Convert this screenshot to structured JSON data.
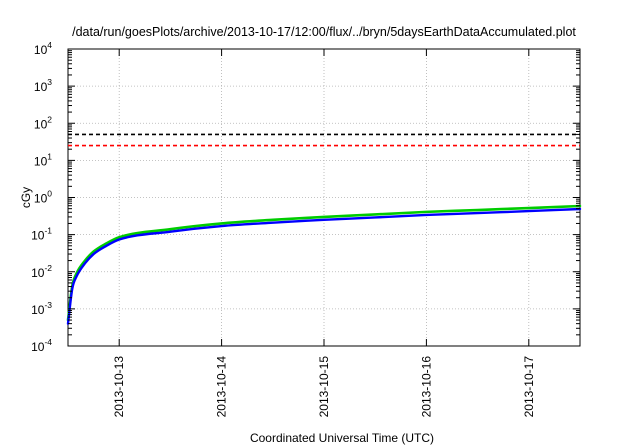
{
  "chart_data": {
    "type": "line",
    "title": "/data/run/goesPlots/archive/2013-10-17/12:00/flux/../bryn/5daysEarthDataAccumulated.plot",
    "xlabel": "Coordinated Universal Time (UTC)",
    "ylabel": "cGy",
    "x_scale": "time",
    "y_scale": "log",
    "xlim": [
      "2013-10-12 12:00",
      "2013-10-17 12:00"
    ],
    "ylim": [
      0.0001,
      10000
    ],
    "grid": true,
    "x_ticks": [
      "2013-10-13",
      "2013-10-14",
      "2013-10-15",
      "2013-10-16",
      "2013-10-17"
    ],
    "y_ticks": [
      {
        "base": "10",
        "exp": "-4",
        "value": 0.0001
      },
      {
        "base": "10",
        "exp": "-3",
        "value": 0.001
      },
      {
        "base": "10",
        "exp": "-2",
        "value": 0.01
      },
      {
        "base": "10",
        "exp": "-1",
        "value": 0.1
      },
      {
        "base": "10",
        "exp": "0",
        "value": 1
      },
      {
        "base": "10",
        "exp": "1",
        "value": 10
      },
      {
        "base": "10",
        "exp": "2",
        "value": 100
      },
      {
        "base": "10",
        "exp": "3",
        "value": 1000
      },
      {
        "base": "10",
        "exp": "4",
        "value": 10000
      }
    ],
    "thresholds": [
      {
        "value": 50,
        "color": "#000000",
        "style": "dashed"
      },
      {
        "value": 25,
        "color": "#ff0000",
        "style": "dashed"
      }
    ],
    "series": [
      {
        "color": "#00cc00",
        "x": [
          "2013-10-12 12:00",
          "2013-10-12 13:00",
          "2013-10-12 14:00",
          "2013-10-12 16:00",
          "2013-10-12 18:00",
          "2013-10-12 21:00",
          "2013-10-13 00:00",
          "2013-10-13 12:00",
          "2013-10-14 00:00",
          "2013-10-14 12:00",
          "2013-10-15 00:00",
          "2013-10-15 12:00",
          "2013-10-16 00:00",
          "2013-10-16 12:00",
          "2013-10-17 00:00",
          "2013-10-17 12:00"
        ],
        "values": [
          0.0005,
          0.0042,
          0.009,
          0.02,
          0.035,
          0.058,
          0.085,
          0.14,
          0.2,
          0.25,
          0.3,
          0.35,
          0.41,
          0.46,
          0.52,
          0.59
        ]
      },
      {
        "color": "#0000ff",
        "x": [
          "2013-10-12 12:00",
          "2013-10-12 13:00",
          "2013-10-12 14:00",
          "2013-10-12 16:00",
          "2013-10-12 18:00",
          "2013-10-12 21:00",
          "2013-10-13 00:00",
          "2013-10-13 12:00",
          "2013-10-14 00:00",
          "2013-10-14 12:00",
          "2013-10-15 00:00",
          "2013-10-15 12:00",
          "2013-10-16 00:00",
          "2013-10-16 12:00",
          "2013-10-17 00:00",
          "2013-10-17 12:00"
        ],
        "values": [
          0.0004,
          0.0035,
          0.0075,
          0.017,
          0.03,
          0.05,
          0.074,
          0.12,
          0.17,
          0.21,
          0.25,
          0.29,
          0.34,
          0.38,
          0.43,
          0.49
        ]
      }
    ]
  }
}
